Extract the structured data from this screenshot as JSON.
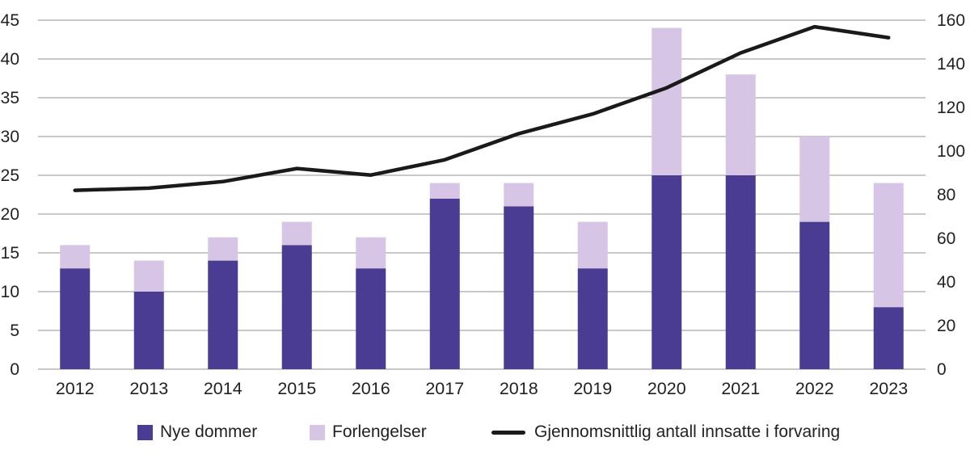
{
  "colors": {
    "bar_dark": "#4A3C93",
    "bar_light": "#D6C5E4",
    "line": "#1A1A1A",
    "grid": "#A6A6A6",
    "text": "#221F1F",
    "background": "#FFFFFF"
  },
  "chart_data": {
    "type": "bar",
    "subtype": "stacked-bars-with-line-dual-axis",
    "categories": [
      "2012",
      "2013",
      "2014",
      "2015",
      "2016",
      "2017",
      "2018",
      "2019",
      "2020",
      "2021",
      "2022",
      "2023"
    ],
    "series": [
      {
        "name": "Nye dommer",
        "type": "bar",
        "stack": "dommer",
        "axis": "left",
        "color_key": "bar_dark",
        "values": [
          13,
          10,
          14,
          16,
          13,
          22,
          21,
          13,
          25,
          25,
          19,
          8
        ]
      },
      {
        "name": "Forlengelser",
        "type": "bar",
        "stack": "dommer",
        "axis": "left",
        "color_key": "bar_light",
        "values": [
          3,
          4,
          3,
          3,
          4,
          2,
          3,
          6,
          19,
          13,
          11,
          16
        ]
      }
    ],
    "stack_totals": [
      16,
      14,
      17,
      19,
      17,
      24,
      24,
      19,
      44,
      38,
      30,
      24
    ],
    "line": {
      "name": "Gjennomsnittlig antall innsatte i forvaring",
      "type": "line",
      "axis": "right",
      "color_key": "line",
      "values": [
        82,
        83,
        86,
        92,
        89,
        96,
        108,
        117,
        129,
        145,
        157,
        152
      ]
    },
    "left_axis": {
      "min": 0,
      "max": 45,
      "ticks": [
        0,
        5,
        10,
        15,
        20,
        25,
        30,
        35,
        40,
        45
      ]
    },
    "right_axis": {
      "min": 0,
      "max": 160,
      "ticks": [
        0,
        20,
        40,
        60,
        80,
        100,
        120,
        140,
        160
      ]
    },
    "grid": "horizontal",
    "legend_position": "bottom",
    "title": "",
    "xlabel": "",
    "ylabel_left": "",
    "ylabel_right": ""
  }
}
